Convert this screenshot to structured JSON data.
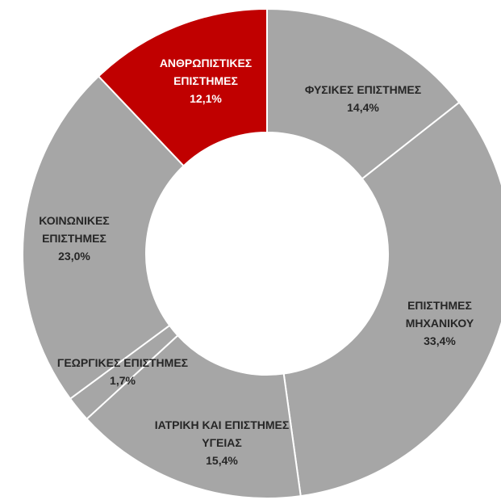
{
  "chart_data": {
    "type": "donut",
    "categories": [
      "ΦΥΣΙΚΕΣ ΕΠΙΣΤΗΜΕΣ",
      "ΕΠΙΣΤΗΜΕΣ ΜΗΧΑΝΙΚΟΥ",
      "ΙΑΤΡΙΚΗ ΚΑΙ ΕΠΙΣΤΗΜΕΣ ΥΓΕΙΑΣ",
      "ΓΕΩΡΓΙΚΕΣ ΕΠΙΣΤΗΜΕΣ",
      "ΚΟΙΝΩΝΙΚΕΣ ΕΠΙΣΤΗΜΕΣ",
      "ΑΝΘΡΩΠΙΣΤΙΚΕΣ ΕΠΙΣΤΗΜΕΣ"
    ],
    "values": [
      14.4,
      33.4,
      15.4,
      1.7,
      23.0,
      12.1
    ],
    "value_labels": [
      "14,4%",
      "33,4%",
      "15,4%",
      "1,7%",
      "23,0%",
      "12,1%"
    ],
    "colors": [
      "#a6a6a6",
      "#a6a6a6",
      "#a6a6a6",
      "#a6a6a6",
      "#a6a6a6",
      "#c00000"
    ]
  }
}
